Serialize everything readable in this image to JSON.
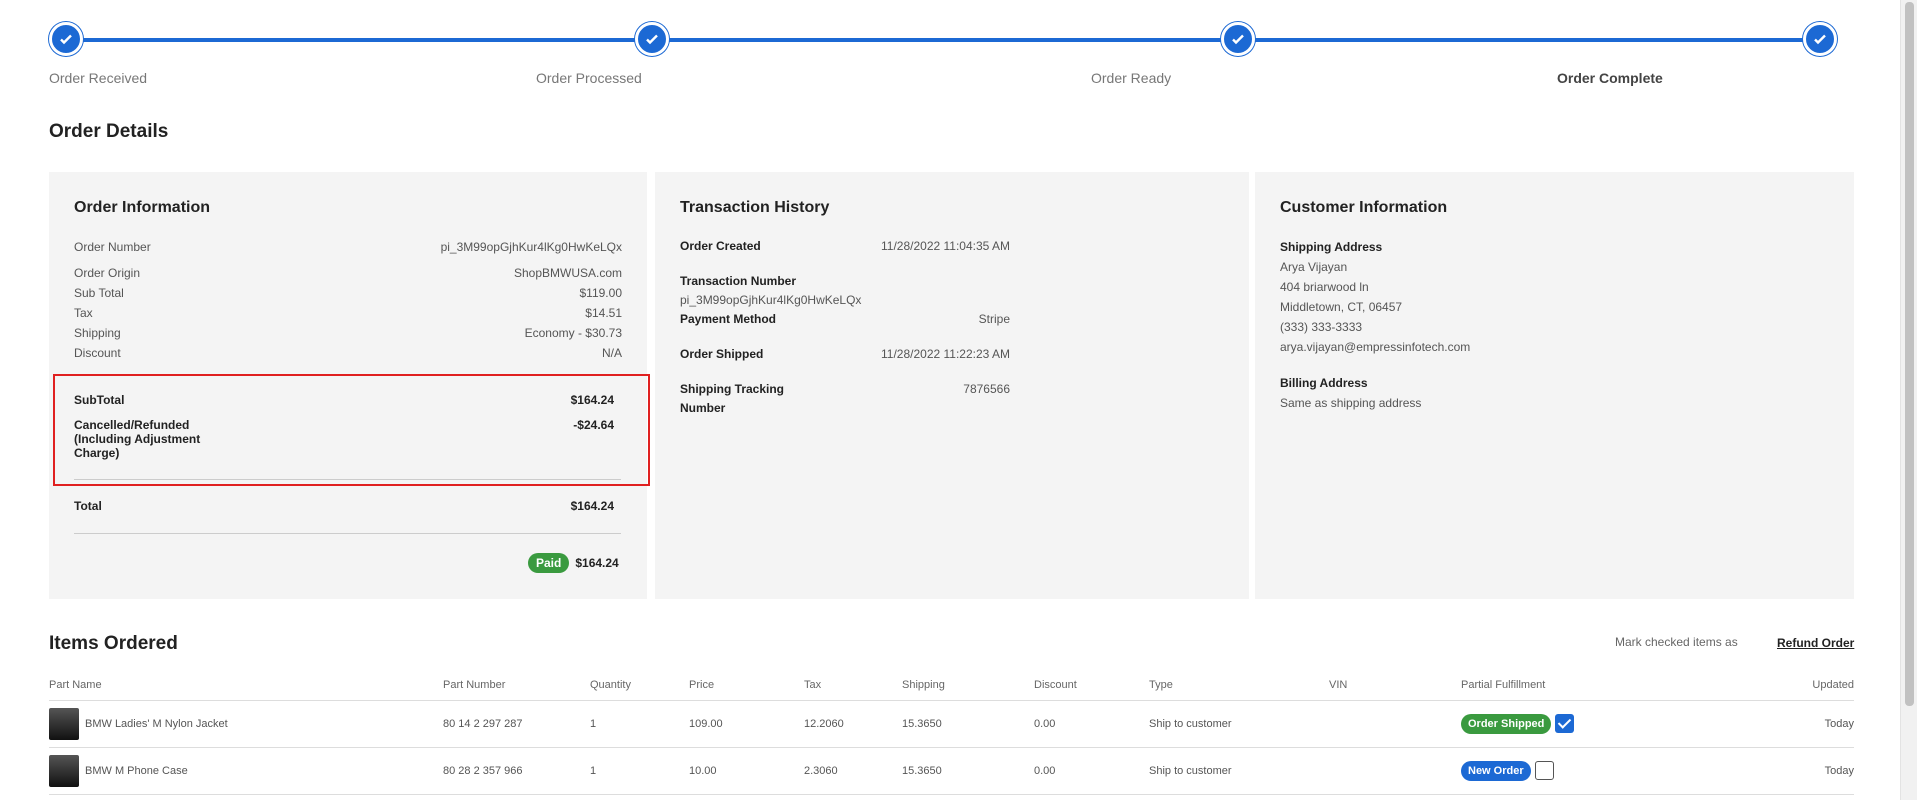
{
  "progress": {
    "steps": [
      {
        "label": "Order Received",
        "done": true
      },
      {
        "label": "Order Processed",
        "done": true
      },
      {
        "label": "Order Ready",
        "done": true
      },
      {
        "label": "Order Complete",
        "done": true,
        "active": true
      }
    ],
    "accent": "#1c69d4"
  },
  "order_details": {
    "title": "Order Details",
    "order_info": {
      "title": "Order Information",
      "rows": [
        {
          "label": "Order Number",
          "value": "pi_3M99opGjhKur4lKg0HwKeLQx"
        },
        {
          "label": "Order Origin",
          "value": "ShopBMWUSA.com"
        },
        {
          "label": "Sub Total",
          "value": "$119.00"
        },
        {
          "label": "Tax",
          "value": "$14.51"
        },
        {
          "label": "Shipping",
          "value": "Economy - $30.73"
        },
        {
          "label": "Discount",
          "value": "N/A"
        }
      ],
      "subtotal_label": "SubTotal",
      "subtotal_value": "$164.24",
      "refunded_label": "Cancelled/Refunded (Including Adjustment Charge)",
      "refunded_value": "-$24.64",
      "total_label": "Total",
      "total_value": "$164.24",
      "paid_badge": "Paid",
      "paid_amount": "$164.24"
    },
    "transaction_history": {
      "title": "Transaction History",
      "order_created_label": "Order Created",
      "order_created_value": "11/28/2022 11:04:35 AM",
      "transaction_number_label": "Transaction Number",
      "transaction_number_value": "pi_3M99opGjhKur4lKg0HwKeLQx",
      "payment_method_label": "Payment Method",
      "payment_method_value": "Stripe",
      "order_shipped_label": "Order Shipped",
      "order_shipped_value": "11/28/2022 11:22:23 AM",
      "tracking_label": "Shipping Tracking Number",
      "tracking_value": "7876566"
    },
    "customer_info": {
      "title": "Customer Information",
      "shipping_label": "Shipping Address",
      "shipping_lines": [
        "Arya Vijayan",
        "404 briarwood ln",
        "Middletown, CT, 06457",
        "(333) 333-3333",
        "arya.vijayan@empressinfotech.com"
      ],
      "billing_label": "Billing Address",
      "billing_value": "Same as shipping address"
    }
  },
  "items_ordered": {
    "title": "Items Ordered",
    "mark_label": "Mark checked items as",
    "refund_link": "Refund Order",
    "columns": [
      "Part Name",
      "Part Number",
      "Quantity",
      "Price",
      "Tax",
      "Shipping",
      "Discount",
      "Type",
      "VIN",
      "Partial Fulfillment",
      "Updated"
    ],
    "rows": [
      {
        "name": "BMW Ladies' M Nylon Jacket",
        "part_number": "80 14 2 297 287",
        "quantity": "1",
        "price": "109.00",
        "tax": "12.2060",
        "shipping": "15.3650",
        "discount": "0.00",
        "type": "Ship to customer",
        "vin": "",
        "status": "Order Shipped",
        "status_color": "#3a9a3f",
        "checked": true,
        "updated": "Today"
      },
      {
        "name": "BMW M Phone Case",
        "part_number": "80 28 2 357 966",
        "quantity": "1",
        "price": "10.00",
        "tax": "2.3060",
        "shipping": "15.3650",
        "discount": "0.00",
        "type": "Ship to customer",
        "vin": "",
        "status": "New Order",
        "status_color": "#1c69d4",
        "checked": false,
        "updated": "Today"
      }
    ]
  }
}
